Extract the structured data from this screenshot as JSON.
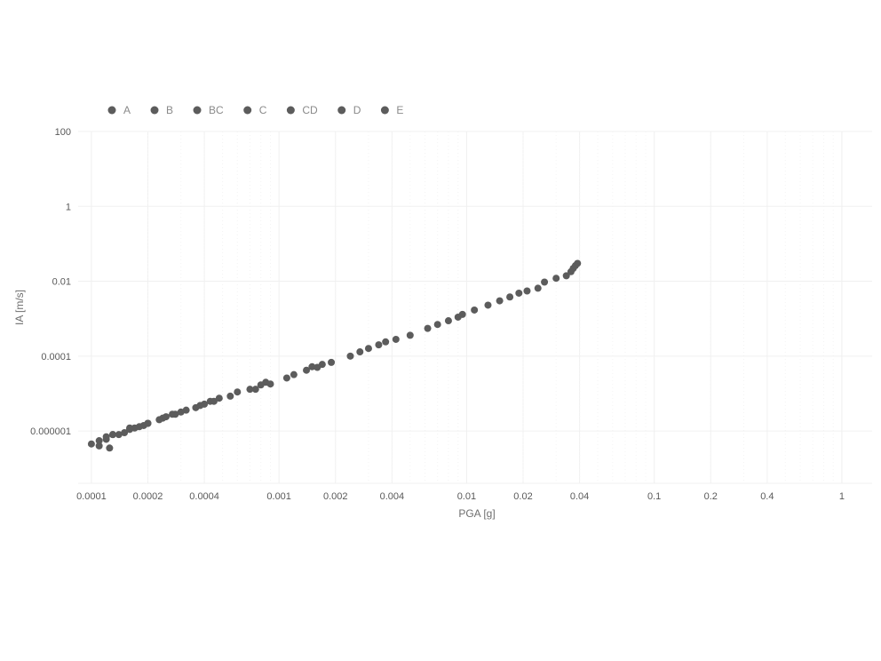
{
  "chart_data": {
    "type": "scatter",
    "title": "",
    "xlabel": "PGA [g]",
    "ylabel": "IA [m/s]",
    "x_scale": "log",
    "y_scale": "log",
    "xlim": [
      8.5e-05,
      1.45
    ],
    "ylim": [
      4e-08,
      100
    ],
    "x_ticks": [
      0.0001,
      0.0002,
      0.0004,
      0.001,
      0.002,
      0.004,
      0.01,
      0.02,
      0.04,
      0.1,
      0.2,
      0.4,
      1
    ],
    "x_tick_labels": [
      "0.0001",
      "0.0002",
      "0.0004",
      "0.001",
      "0.002",
      "0.004",
      "0.01",
      "0.02",
      "0.04",
      "0.1",
      "0.2",
      "0.4",
      "1"
    ],
    "y_ticks": [
      100,
      1,
      0.01,
      0.0001,
      1e-06
    ],
    "y_tick_labels": [
      "100",
      "1",
      "0.01",
      "0.0001",
      "0.000001"
    ],
    "grid": true,
    "legend_position": "top-left",
    "point_color": "#5c5c5c",
    "grid_color": "#f0f0f0",
    "series": [
      {
        "name": "A",
        "x": [
          0.00011,
          0.00013,
          0.00016,
          0.00024,
          0.00038,
          0.00075,
          0.0016,
          0.0042,
          0.011,
          0.026
        ],
        "y": [
          5.5e-07,
          8e-07,
          1.2e-06,
          2.2e-06,
          4.8e-06,
          1.3e-05,
          5e-05,
          0.00028,
          0.0017,
          0.0095
        ]
      },
      {
        "name": "B",
        "x": [
          0.00012,
          0.00015,
          0.00019,
          0.00028,
          0.00045,
          0.0009,
          0.0019,
          0.005,
          0.013,
          0.03
        ],
        "y": [
          6e-07,
          9e-07,
          1.4e-06,
          2.8e-06,
          6.2e-06,
          1.8e-05,
          6.8e-05,
          0.00036,
          0.0023,
          0.012
        ]
      },
      {
        "name": "BC",
        "x": [
          0.0001,
          0.00014,
          0.0002,
          0.00032,
          0.00055,
          0.0011,
          0.0024,
          0.0062,
          0.015,
          0.034
        ],
        "y": [
          4.5e-07,
          8e-07,
          1.6e-06,
          3.6e-06,
          8.5e-06,
          2.6e-05,
          0.0001,
          0.00055,
          0.003,
          0.014
        ]
      },
      {
        "name": "C",
        "x": [
          0.00011,
          0.00016,
          0.00023,
          0.00036,
          0.0006,
          0.0012,
          0.0027,
          0.007,
          0.017,
          0.036
        ],
        "y": [
          4e-07,
          1.1e-06,
          2e-06,
          4.2e-06,
          1.1e-05,
          3.2e-05,
          0.00013,
          0.0007,
          0.0038,
          0.018
        ]
      },
      {
        "name": "CD",
        "x": [
          0.00012,
          0.00017,
          0.00025,
          0.0004,
          0.0007,
          0.0014,
          0.003,
          0.008,
          0.019,
          0.037
        ],
        "y": [
          7e-07,
          1.2e-06,
          2.4e-06,
          5.2e-06,
          1.3e-05,
          4.2e-05,
          0.00016,
          0.00088,
          0.0048,
          0.022
        ]
      },
      {
        "name": "D",
        "x": [
          0.00013,
          0.00018,
          0.00027,
          0.00043,
          0.0008,
          0.0015,
          0.0034,
          0.009,
          0.021,
          0.038
        ],
        "y": [
          8e-07,
          1.3e-06,
          2.8e-06,
          6.2e-06,
          1.7e-05,
          5.2e-05,
          0.0002,
          0.0011,
          0.0055,
          0.026
        ]
      },
      {
        "name": "E",
        "x": [
          0.000125,
          0.0002,
          0.0003,
          0.00048,
          0.00085,
          0.0017,
          0.0037,
          0.0095,
          0.024,
          0.039
        ],
        "y": [
          3.5e-07,
          1.6e-06,
          3.2e-06,
          7.5e-06,
          2e-05,
          6e-05,
          0.00024,
          0.0013,
          0.0065,
          0.03
        ]
      }
    ]
  }
}
